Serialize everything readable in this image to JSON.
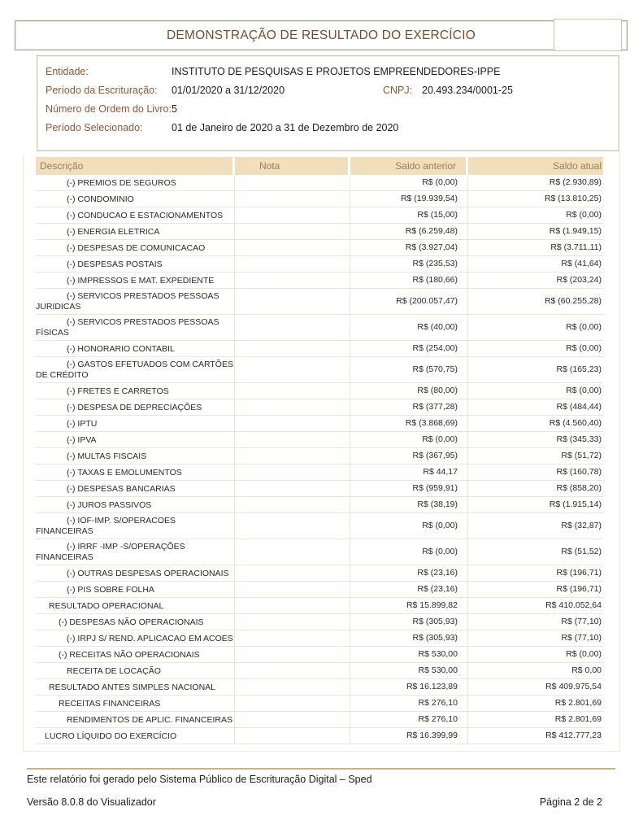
{
  "title": "DEMONSTRAÇÃO DE RESULTADO DO EXERCÍCIO",
  "info": {
    "entidade_label": "Entidade:",
    "entidade_value": "INSTITUTO DE PESQUISAS E PROJETOS EMPREENDEDORES-IPPE",
    "periodo_escrituracao_label": "Período da Escrituração:",
    "periodo_escrituracao_value": "01/01/2020 a 31/12/2020",
    "cnpj_label": "CNPJ:",
    "cnpj_value": "20.493.234/0001-25",
    "numero_ordem_label": "Número de Ordem do Livro:",
    "numero_ordem_value": "5",
    "periodo_selecionado_label": "Período Selecionado:",
    "periodo_selecionado_value": "01 de Janeiro de 2020 a 31 de Dezembro de 2020"
  },
  "table": {
    "headers": {
      "descricao": "Descrição",
      "nota": "Nota",
      "saldo_anterior": "Saldo anterior",
      "saldo_atual": "Saldo atual"
    },
    "rows": [
      {
        "descricao": "(-) PREMIOS DE SEGUROS",
        "nota": "",
        "saldo_anterior": "R$ (0,00)",
        "saldo_atual": "R$ (2.930,89)",
        "indent": 3
      },
      {
        "descricao": "(-) CONDOMINIO",
        "nota": "",
        "saldo_anterior": "R$ (19.939,54)",
        "saldo_atual": "R$ (13.810,25)",
        "indent": 3
      },
      {
        "descricao": "(-) CONDUCAO E ESTACIONAMENTOS",
        "nota": "",
        "saldo_anterior": "R$ (15,00)",
        "saldo_atual": "R$ (0,00)",
        "indent": 3
      },
      {
        "descricao": "(-) ENERGIA ELETRICA",
        "nota": "",
        "saldo_anterior": "R$ (6.259,48)",
        "saldo_atual": "R$ (1.949,15)",
        "indent": 3
      },
      {
        "descricao": "(-) DESPESAS DE COMUNICACAO",
        "nota": "",
        "saldo_anterior": "R$ (3.927,04)",
        "saldo_atual": "R$ (3.711,11)",
        "indent": 3
      },
      {
        "descricao": "(-) DESPESAS POSTAIS",
        "nota": "",
        "saldo_anterior": "R$ (235,53)",
        "saldo_atual": "R$ (41,64)",
        "indent": 3
      },
      {
        "descricao": "(-) IMPRESSOS E MAT. EXPEDIENTE",
        "nota": "",
        "saldo_anterior": "R$ (180,66)",
        "saldo_atual": "R$ (203,24)",
        "indent": 3
      },
      {
        "descricao": "(-) SERVICOS PRESTADOS PESSOAS\nJURIDICAS",
        "nota": "",
        "saldo_anterior": "R$ (200.057,47)",
        "saldo_atual": "R$ (60.255,28)",
        "indent": 3
      },
      {
        "descricao": "(-) SERVICOS PRESTADOS PESSOAS\nFÍSICAS",
        "nota": "",
        "saldo_anterior": "R$ (40,00)",
        "saldo_atual": "R$ (0,00)",
        "indent": 3
      },
      {
        "descricao": "(-) HONORARIO CONTABIL",
        "nota": "",
        "saldo_anterior": "R$ (254,00)",
        "saldo_atual": "R$ (0,00)",
        "indent": 3
      },
      {
        "descricao": "(-) GASTOS EFETUADOS COM CARTÕES\nDE CRÉDITO",
        "nota": "",
        "saldo_anterior": "R$ (570,75)",
        "saldo_atual": "R$ (165,23)",
        "indent": 3
      },
      {
        "descricao": "(-) FRETES E CARRETOS",
        "nota": "",
        "saldo_anterior": "R$ (80,00)",
        "saldo_atual": "R$ (0,00)",
        "indent": 3
      },
      {
        "descricao": "(-) DESPESA DE DEPRECIAÇÕES",
        "nota": "",
        "saldo_anterior": "R$ (377,28)",
        "saldo_atual": "R$ (484,44)",
        "indent": 3
      },
      {
        "descricao": "(-) IPTU",
        "nota": "",
        "saldo_anterior": "R$ (3.868,69)",
        "saldo_atual": "R$ (4.560,40)",
        "indent": 3
      },
      {
        "descricao": "(-) IPVA",
        "nota": "",
        "saldo_anterior": "R$ (0,00)",
        "saldo_atual": "R$ (345,33)",
        "indent": 3
      },
      {
        "descricao": "(-) MULTAS FISCAIS",
        "nota": "",
        "saldo_anterior": "R$ (367,95)",
        "saldo_atual": "R$ (51,72)",
        "indent": 3
      },
      {
        "descricao": "(-) TAXAS E EMOLUMENTOS",
        "nota": "",
        "saldo_anterior": "R$ 44,17",
        "saldo_atual": "R$ (160,78)",
        "indent": 3
      },
      {
        "descricao": "(-) DESPESAS BANCARIAS",
        "nota": "",
        "saldo_anterior": "R$ (959,91)",
        "saldo_atual": "R$ (858,20)",
        "indent": 3
      },
      {
        "descricao": "(-) JUROS PASSIVOS",
        "nota": "",
        "saldo_anterior": "R$ (38,19)",
        "saldo_atual": "R$ (1.915,14)",
        "indent": 3
      },
      {
        "descricao": "(-) IOF-IMP. S/OPERACOES\nFINANCEIRAS",
        "nota": "",
        "saldo_anterior": "R$ (0,00)",
        "saldo_atual": "R$ (32,87)",
        "indent": 3
      },
      {
        "descricao": "(-) IRRF -IMP -S/OPERAÇÕES\nFINANCEIRAS",
        "nota": "",
        "saldo_anterior": "R$ (0,00)",
        "saldo_atual": "R$ (51,52)",
        "indent": 3
      },
      {
        "descricao": "(-) OUTRAS DESPESAS OPERACIONAIS",
        "nota": "",
        "saldo_anterior": "R$ (23,16)",
        "saldo_atual": "R$ (196,71)",
        "indent": 3
      },
      {
        "descricao": "(-) PIS SOBRE FOLHA",
        "nota": "",
        "saldo_anterior": "R$ (23,16)",
        "saldo_atual": "R$ (196,71)",
        "indent": 3
      },
      {
        "descricao": "RESULTADO OPERACIONAL",
        "nota": "",
        "saldo_anterior": "R$ 15.899,82",
        "saldo_atual": "R$ 410.052,64",
        "indent": 1
      },
      {
        "descricao": "(-) DESPESAS NÃO OPERACIONAIS",
        "nota": "",
        "saldo_anterior": "R$ (305,93)",
        "saldo_atual": "R$ (77,10)",
        "indent": 2
      },
      {
        "descricao": "(-) IRPJ S/ REND. APLICACAO EM ACOES",
        "nota": "",
        "saldo_anterior": "R$ (305,93)",
        "saldo_atual": "R$ (77,10)",
        "indent": 3
      },
      {
        "descricao": "(-) RECEITAS NÃO OPERACIONAIS",
        "nota": "",
        "saldo_anterior": "R$ 530,00",
        "saldo_atual": "R$ (0,00)",
        "indent": 2
      },
      {
        "descricao": "RECEITA DE LOCAÇÃO",
        "nota": "",
        "saldo_anterior": "R$ 530,00",
        "saldo_atual": "R$ 0,00",
        "indent": 3
      },
      {
        "descricao": "RESULTADO ANTES SIMPLES NACIONAL",
        "nota": "",
        "saldo_anterior": "R$ 16.123,89",
        "saldo_atual": "R$ 409.975,54",
        "indent": 1
      },
      {
        "descricao": "RECEITAS FINANCEIRAS",
        "nota": "",
        "saldo_anterior": "R$ 276,10",
        "saldo_atual": "R$ 2.801,69",
        "indent": 2
      },
      {
        "descricao": "RENDIMENTOS DE APLIC. FINANCEIRAS",
        "nota": "",
        "saldo_anterior": "R$ 276,10",
        "saldo_atual": "R$ 2.801,69",
        "indent": 3
      },
      {
        "descricao": "LUCRO LÍQUIDO DO EXERCÍCIO",
        "nota": "",
        "saldo_anterior": "R$ 16.399,99",
        "saldo_atual": "R$ 412.777,23",
        "indent": 0
      }
    ]
  },
  "footer": {
    "generated_text": "Este relatório foi gerado pelo Sistema Público de Escrituração Digital – Sped",
    "version_text": "Versão 8.0.8 do Visualizador",
    "page_text": "Página 2 de 2"
  },
  "colors": {
    "accent_brown": "#7b4a2c",
    "label_brown": "#8d5835",
    "band_bg": "#f0debd",
    "band_text": "#95815f",
    "footer_rule": "#c8b28c"
  }
}
